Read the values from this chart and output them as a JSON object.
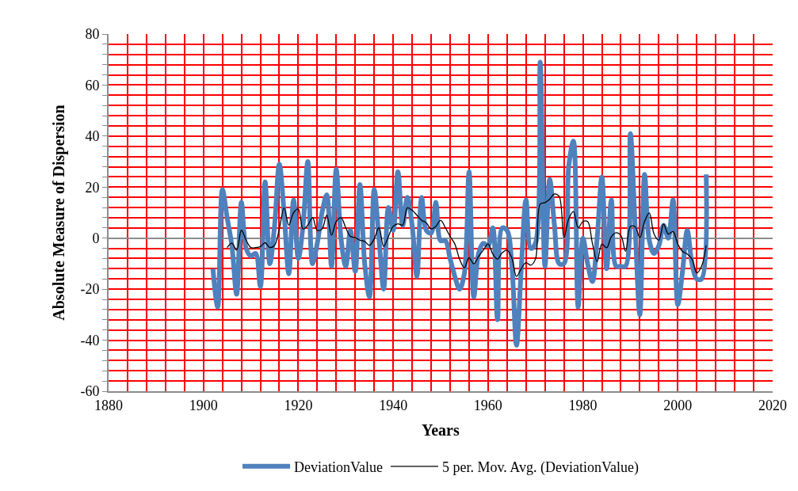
{
  "chart_data": {
    "type": "line",
    "xlabel": "Years",
    "ylabel": "Absolute Measure of Dispersion",
    "xlim": [
      1880,
      2020
    ],
    "ylim": [
      -60,
      80
    ],
    "grid": true,
    "legend": "bottom",
    "xticks": [
      1880,
      {
        "value": 1884,
        "label": null
      },
      {
        "value": 1888,
        "label": null
      },
      {
        "value": 1892,
        "label": null
      },
      {
        "value": 1896,
        "label": null
      },
      1900,
      {
        "value": 1904,
        "label": null
      },
      {
        "value": 1908,
        "label": null
      },
      {
        "value": 1912,
        "label": null
      },
      {
        "value": 1916,
        "label": null
      },
      1920,
      {
        "value": 1924,
        "label": null
      },
      {
        "value": 1928,
        "label": null
      },
      {
        "value": 1932,
        "label": null
      },
      {
        "value": 1936,
        "label": null
      },
      1940,
      {
        "value": 1944,
        "label": null
      },
      {
        "value": 1948,
        "label": null
      },
      {
        "value": 1952,
        "label": null
      },
      {
        "value": 1956,
        "label": null
      },
      1960,
      {
        "value": 1964,
        "label": null
      },
      {
        "value": 1968,
        "label": null
      },
      {
        "value": 1972,
        "label": null
      },
      {
        "value": 1976,
        "label": null
      },
      1980,
      {
        "value": 1984,
        "label": null
      },
      {
        "value": 1988,
        "label": null
      },
      {
        "value": 1992,
        "label": null
      },
      {
        "value": 1996,
        "label": null
      },
      2000,
      {
        "value": 2004,
        "label": null
      },
      {
        "value": 2008,
        "label": null
      },
      {
        "value": 2012,
        "label": null
      },
      {
        "value": 2016,
        "label": null
      },
      2020
    ],
    "yticks": [
      -60,
      {
        "value": -56,
        "label": null
      },
      {
        "value": -52,
        "label": null
      },
      {
        "value": -48,
        "label": null
      },
      {
        "value": -44,
        "label": null
      },
      -40,
      {
        "value": -36,
        "label": null
      },
      {
        "value": -32,
        "label": null
      },
      {
        "value": -28,
        "label": null
      },
      {
        "value": -24,
        "label": null
      },
      -20,
      {
        "value": -16,
        "label": null
      },
      {
        "value": -12,
        "label": null
      },
      {
        "value": -8,
        "label": null
      },
      {
        "value": -4,
        "label": null
      },
      0,
      {
        "value": 4,
        "label": null
      },
      {
        "value": 8,
        "label": null
      },
      {
        "value": 12,
        "label": null
      },
      {
        "value": 16,
        "label": null
      },
      20,
      {
        "value": 24,
        "label": null
      },
      {
        "value": 28,
        "label": null
      },
      {
        "value": 32,
        "label": null
      },
      {
        "value": 36,
        "label": null
      },
      40,
      {
        "value": 44,
        "label": null
      },
      {
        "value": 48,
        "label": null
      },
      {
        "value": 52,
        "label": null
      },
      {
        "value": 56,
        "label": null
      },
      60,
      {
        "value": 64,
        "label": null
      },
      {
        "value": 68,
        "label": null
      },
      {
        "value": 72,
        "label": null
      },
      {
        "value": 76,
        "label": null
      },
      80
    ],
    "series": [
      {
        "name": "DeviationValue",
        "color": "#4f81bd",
        "x": [
          1902,
          1903,
          1904,
          1905,
          1906,
          1907,
          1908,
          1909,
          1910,
          1911,
          1912,
          1913,
          1914,
          1915,
          1916,
          1917,
          1918,
          1919,
          1920,
          1921,
          1922,
          1923,
          1924,
          1925,
          1926,
          1927,
          1928,
          1929,
          1930,
          1931,
          1932,
          1933,
          1934,
          1935,
          1936,
          1937,
          1938,
          1939,
          1940,
          1941,
          1942,
          1943,
          1944,
          1945,
          1946,
          1947,
          1948,
          1949,
          1950,
          1951,
          1952,
          1953,
          1954,
          1955,
          1956,
          1957,
          1958,
          1959,
          1960,
          1961,
          1962,
          1963,
          1964,
          1965,
          1966,
          1967,
          1968,
          1969,
          1970,
          1971,
          1972,
          1973,
          1974,
          1975,
          1976,
          1977,
          1978,
          1979,
          1980,
          1981,
          1982,
          1983,
          1984,
          1985,
          1986,
          1987,
          1988,
          1989,
          1990,
          1991,
          1992,
          1993,
          1994,
          1995,
          1996,
          1997,
          1998,
          1999,
          2000,
          2001,
          2002,
          2003,
          2004,
          2005,
          2006
        ],
        "values": [
          -12,
          -27,
          19,
          8,
          -3,
          -22,
          14,
          -4,
          -7,
          -6,
          -19,
          22,
          -10,
          5,
          29,
          10,
          -14,
          15,
          -8,
          5,
          30,
          -10,
          -2,
          10,
          17,
          -11,
          27,
          0,
          -11,
          3,
          -13,
          21,
          -10,
          -23,
          19,
          0,
          -20,
          12,
          3,
          26,
          5,
          16,
          5,
          -15,
          16,
          3,
          2,
          14,
          -1,
          -1,
          -8,
          -15,
          -20,
          -14,
          26,
          -23,
          -6,
          -2,
          -3,
          4,
          -32,
          4,
          3,
          -10,
          -42,
          -12,
          15,
          -4,
          -2,
          69,
          -11,
          23,
          5,
          -10,
          -10,
          28,
          38,
          -27,
          0,
          -10,
          -17,
          0,
          24,
          -12,
          15,
          -11,
          -11,
          -11,
          41,
          5,
          -30,
          25,
          -1,
          -6,
          -3,
          5,
          0,
          15,
          -26,
          -13,
          3,
          -10,
          -16,
          -16,
          25
        ]
      },
      {
        "name": "5 per. Mov. Avg. (DeviationValue)",
        "color": "#000000",
        "x": [
          1905,
          1906,
          1907,
          1908,
          1909,
          1910,
          1911,
          1912,
          1913,
          1914,
          1915,
          1916,
          1917,
          1918,
          1919,
          1920,
          1921,
          1922,
          1923,
          1924,
          1925,
          1926,
          1927,
          1928,
          1929,
          1930,
          1931,
          1932,
          1933,
          1934,
          1935,
          1936,
          1937,
          1938,
          1939,
          1940,
          1941,
          1942,
          1943,
          1944,
          1945,
          1946,
          1947,
          1948,
          1949,
          1950,
          1951,
          1952,
          1953,
          1954,
          1955,
          1956,
          1957,
          1958,
          1959,
          1960,
          1961,
          1962,
          1963,
          1964,
          1965,
          1966,
          1967,
          1968,
          1969,
          1970,
          1971,
          1972,
          1973,
          1974,
          1975,
          1976,
          1977,
          1978,
          1979,
          1980,
          1981,
          1982,
          1983,
          1984,
          1985,
          1986,
          1987,
          1988,
          1989,
          1990,
          1991,
          1992,
          1993,
          1994,
          1995,
          1996,
          1997,
          1998,
          1999,
          2000,
          2001,
          2002,
          2003,
          2004,
          2005,
          2006
        ],
        "values": [
          -3.7,
          -2,
          -4.7,
          3.1,
          -0.8,
          -3.7,
          -3.7,
          -3.3,
          -1.8,
          -3.7,
          -2.8,
          3.6,
          11.9,
          5.1,
          10,
          11.4,
          3.6,
          5.1,
          8,
          3.1,
          3.6,
          9,
          1.2,
          6.5,
          8,
          4.1,
          0.7,
          0.2,
          -0.8,
          -1.3,
          -2.8,
          -0.3,
          4.1,
          -3.3,
          0.7,
          4.6,
          5.6,
          5.1,
          11.9,
          10.9,
          9,
          7,
          6,
          3.6,
          4.6,
          7,
          4.1,
          0.7,
          -2.3,
          -8.2,
          -11.6,
          -7.7,
          -10.1,
          -7.2,
          -4.7,
          -2.3,
          -6.2,
          -8.2,
          -5.7,
          -4.7,
          -7.7,
          -15,
          -12,
          -9.6,
          -10.6,
          -8.2,
          13.4,
          13.9,
          15.3,
          17.3,
          16.3,
          0.2,
          7.5,
          10.4,
          4.1,
          6.5,
          6.5,
          -2,
          -9.2,
          -2.3,
          -3.8,
          0.6,
          2.1,
          1.1,
          -5.2,
          4.5,
          4.5,
          0.1,
          6.5,
          9.9,
          1.6,
          -0.8,
          5.5,
          1.6,
          2.6,
          -2.3,
          -5.2,
          -6.2,
          -8.2,
          -13.6,
          -11.1,
          -2.8
        ]
      }
    ]
  }
}
